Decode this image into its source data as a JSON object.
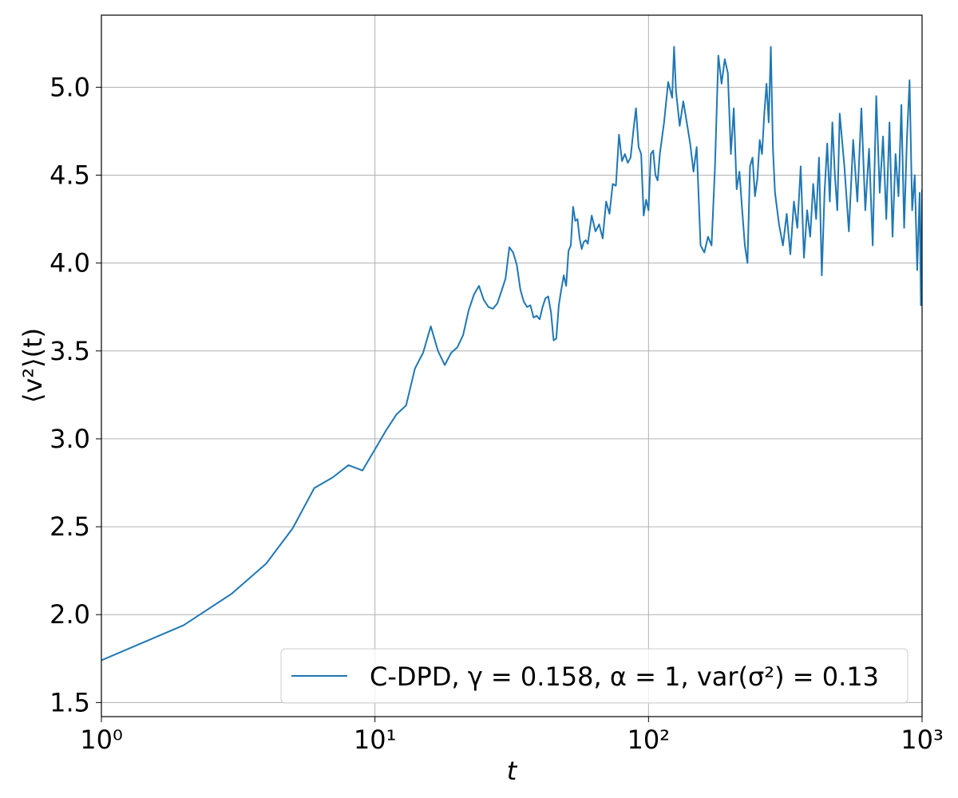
{
  "chart_data": {
    "type": "line",
    "xlabel": "t",
    "ylabel": "⟨v²⟩(t)",
    "xscale": "log",
    "grid": true,
    "legend_loc": "lower right",
    "xlim": [
      1,
      1000
    ],
    "ylim": [
      1.42,
      5.41
    ],
    "xticks": [
      {
        "value": 1,
        "label": "10⁰"
      },
      {
        "value": 10,
        "label": "10¹"
      },
      {
        "value": 100,
        "label": "10²"
      },
      {
        "value": 1000,
        "label": "10³"
      }
    ],
    "yticks": [
      1.5,
      {
        "value": 2,
        "label": "2.0"
      },
      2.5,
      {
        "value": 3,
        "label": "3.0"
      },
      3.5,
      {
        "value": 4,
        "label": "4.0"
      },
      4.5,
      {
        "value": 5,
        "label": "5.0"
      }
    ],
    "x": [
      1,
      2,
      3,
      4,
      5,
      6,
      7,
      8,
      9,
      10,
      11,
      12,
      13,
      14,
      15,
      16,
      17,
      18,
      19,
      20,
      21,
      22,
      23,
      24,
      25,
      26,
      27,
      28,
      29,
      30,
      31,
      32,
      33,
      34,
      35,
      36,
      37,
      38,
      39,
      40,
      41,
      42,
      43,
      44,
      45,
      46,
      47,
      48,
      49,
      50,
      51,
      52,
      53,
      54,
      55,
      56,
      57,
      58,
      59,
      60,
      62,
      64,
      66,
      68,
      70,
      72,
      74,
      76,
      78,
      80,
      82,
      84,
      86,
      88,
      90,
      92,
      94,
      96,
      98,
      100,
      102,
      104,
      106,
      108,
      110,
      114,
      118,
      122,
      124,
      126,
      130,
      134,
      138,
      142,
      146,
      150,
      155,
      160,
      165,
      170,
      175,
      180,
      185,
      190,
      195,
      200,
      205,
      210,
      215,
      220,
      225,
      230,
      235,
      240,
      245,
      250,
      255,
      260,
      265,
      270,
      275,
      280,
      285,
      290,
      300,
      310,
      320,
      330,
      340,
      350,
      360,
      370,
      380,
      390,
      400,
      410,
      420,
      430,
      440,
      450,
      460,
      470,
      480,
      490,
      500,
      520,
      540,
      560,
      580,
      600,
      620,
      640,
      660,
      680,
      700,
      720,
      740,
      760,
      780,
      800,
      820,
      840,
      860,
      880,
      900,
      920,
      940,
      960,
      980,
      990,
      1000
    ],
    "series": [
      {
        "name": "C-DPD, γ = 0.158, α = 1, var(σ²) = 0.13",
        "color": "#1f77b4",
        "values": [
          1.74,
          1.94,
          2.12,
          2.29,
          2.49,
          2.72,
          2.78,
          2.85,
          2.82,
          2.94,
          3.05,
          3.14,
          3.19,
          3.4,
          3.49,
          3.64,
          3.5,
          3.42,
          3.49,
          3.52,
          3.59,
          3.73,
          3.82,
          3.87,
          3.79,
          3.75,
          3.74,
          3.77,
          3.84,
          3.91,
          4.09,
          4.06,
          3.99,
          3.85,
          3.78,
          3.75,
          3.76,
          3.69,
          3.7,
          3.68,
          3.75,
          3.8,
          3.81,
          3.72,
          3.56,
          3.57,
          3.76,
          3.85,
          3.93,
          3.87,
          4.07,
          4.1,
          4.32,
          4.24,
          4.25,
          4.14,
          4.08,
          4.12,
          4.13,
          4.11,
          4.27,
          4.18,
          4.22,
          4.14,
          4.35,
          4.28,
          4.45,
          4.44,
          4.73,
          4.58,
          4.62,
          4.57,
          4.6,
          4.75,
          4.88,
          4.66,
          4.62,
          4.27,
          4.36,
          4.3,
          4.62,
          4.64,
          4.5,
          4.47,
          4.62,
          4.8,
          5.03,
          4.94,
          5.23,
          4.98,
          4.78,
          4.92,
          4.8,
          4.68,
          4.52,
          4.66,
          4.1,
          4.06,
          4.15,
          4.1,
          4.55,
          5.18,
          5.02,
          5.16,
          5.08,
          4.62,
          4.88,
          4.42,
          4.52,
          4.3,
          4.1,
          4.0,
          4.55,
          4.6,
          4.38,
          4.48,
          4.7,
          4.62,
          4.85,
          5.02,
          4.8,
          5.23,
          4.65,
          4.4,
          4.22,
          4.1,
          4.28,
          4.05,
          4.35,
          4.2,
          4.55,
          4.03,
          4.3,
          4.15,
          4.45,
          4.25,
          4.6,
          3.93,
          4.4,
          4.68,
          4.35,
          4.8,
          4.5,
          4.3,
          4.85,
          4.55,
          4.18,
          4.7,
          4.35,
          4.88,
          4.3,
          4.65,
          4.1,
          4.95,
          4.4,
          4.72,
          4.25,
          4.8,
          4.15,
          4.62,
          4.38,
          4.9,
          4.2,
          4.7,
          5.04,
          4.3,
          4.5,
          3.96,
          4.4,
          3.76,
          4.42
        ]
      }
    ]
  }
}
